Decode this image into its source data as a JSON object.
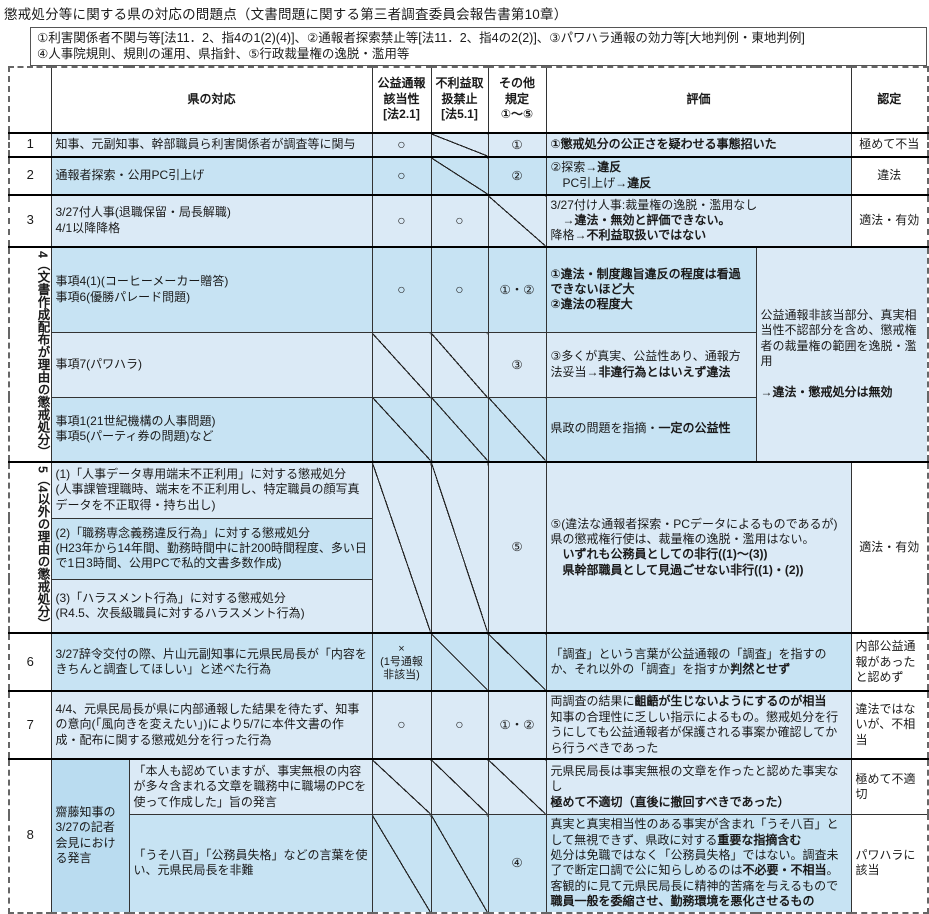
{
  "title": "懲戒処分等に関する県の対応の問題点（文書問題に関する第三者調査委員会報告書第10章）",
  "legend": {
    "line1": "①利害関係者不関与等[法11．2、指4の1(2)(4)]、②通報者探索禁止等[法11．2、指4の2(2)]、③パワハラ通報の効力等[大地判例・東地判例]",
    "line2": "④人事院規則、規則の運用、県指針、⑤行政裁量権の逸脱・濫用等"
  },
  "header": {
    "response": "県の対応",
    "col_whistleblower": "公益通報\n該当性\n[法2.1]",
    "col_disadvantage": "不利益取\n扱禁止\n[法5.1]",
    "col_other": "その他\n規定\n①～⑤",
    "evaluation": "評価",
    "determination": "認定"
  },
  "colors": {
    "band_light": "#dbeaf6",
    "band_medium": "#c7e3f3",
    "band_dark": "#badcf0"
  },
  "rows": {
    "r1": {
      "no": "1",
      "response": "知事、元副知事、幹部職員ら利害関係者が調査等に関与",
      "col_a": "○",
      "col_c": "①",
      "eval": [
        {
          "t": "①懲戒処分の公正さを疑わせる事態招いた",
          "b": true
        }
      ],
      "determination": "極めて不当"
    },
    "r2": {
      "no": "2",
      "response": "通報者探索・公用PC引上げ",
      "col_a": "○",
      "col_c": "②",
      "eval": [
        {
          "t": "②探索→",
          "b": false
        },
        {
          "t": "違反",
          "b": true
        },
        {
          "t": "\n　PC引上げ→",
          "b": false
        },
        {
          "t": "違反",
          "b": true
        }
      ],
      "determination": "違法"
    },
    "r3": {
      "no": "3",
      "response": "3/27付人事(退職保留・局長解職)\n4/1以降降格",
      "col_a": "○",
      "col_b": "○",
      "eval": [
        {
          "t": "3/27付け人事:裁量権の逸脱・濫用なし\n",
          "b": false
        },
        {
          "t": "　→違法・無効と評価できない。\n",
          "b": true
        },
        {
          "t": "降格→",
          "b": false
        },
        {
          "t": "不利益取扱いではない",
          "b": true
        }
      ],
      "determination": "適法・有効"
    },
    "r4": {
      "label": "4（文書作成配布が理由の懲戒処分）",
      "sub1": {
        "response": "事項4(1)(コーヒーメーカー贈答)\n事項6(優勝パレード問題)",
        "col_a": "○",
        "col_b": "○",
        "col_c": "①・②",
        "eval": [
          {
            "t": "①違法・制度趣旨違反の程度は看過できないほど大\n",
            "b": true
          },
          {
            "t": "②違法の程度大",
            "b": true
          }
        ]
      },
      "sub2": {
        "response": "事項7(パワハラ)",
        "col_c": "③",
        "eval": [
          {
            "t": "③多くが真実、公益性あり、通報方法妥当→",
            "b": false
          },
          {
            "t": "非違行為とはいえず違法",
            "b": true
          }
        ]
      },
      "sub3": {
        "response": "事項1(21世紀機構の人事問題)\n事項5(パーティ券の問題)など",
        "eval": [
          {
            "t": "県政の問題を指摘・",
            "b": false
          },
          {
            "t": "一定の公益性",
            "b": true
          }
        ]
      },
      "merged_eval": [
        {
          "t": "公益通報非該当部分、真実相当性不認部分を含め、懲戒権者の裁量権の範囲を逸脱・濫用\n\n",
          "b": false
        },
        {
          "t": "→違法・懲戒処分は無効",
          "b": true
        }
      ]
    },
    "r5": {
      "label": "5（4以外の理由の懲戒処分）",
      "sub1": {
        "response": "(1)「人事データ専用端末不正利用」に対する懲戒処分\n(人事課管理職時、端末を不正利用し、特定職員の顔写真データを不正取得・持ち出し)"
      },
      "sub2": {
        "response": "(2)「職務専念義務違反行為」に対する懲戒処分\n(H23年から14年間、勤務時間中に計200時間程度、多い日で1日3時間、公用PCで私的文書多数作成)"
      },
      "sub3": {
        "response": "(3)「ハラスメント行為」に対する懲戒処分\n(R4.5、次長級職員に対するハラスメント行為)"
      },
      "col_c": "⑤",
      "eval": [
        {
          "t": "⑤(違法な通報者探索・PCデータによるものであるが)\n県の懲戒権行使は、裁量権の逸脱・濫用はない。\n",
          "b": false
        },
        {
          "t": "　いずれも公務員としての非行((1)～(3))\n　県幹部職員として見過ごせない非行((1)・(2))",
          "b": true
        }
      ],
      "determination": "適法・有効"
    },
    "r6": {
      "no": "6",
      "response": "3/27辞令交付の際、片山元副知事に元県民局長が「内容をきちんと調査してほしい」と述べた行為",
      "col_a": "×\n(1号通報\n非該当)",
      "eval": [
        {
          "t": "「調査」という言葉が公益通報の「調査」を指すのか、それ以外の「調査」を指すか",
          "b": false
        },
        {
          "t": "判然とせず",
          "b": true
        }
      ],
      "determination": "内部公益通報があったと認めず"
    },
    "r7": {
      "no": "7",
      "response": "4/4、元県民局長が県に内部通報した結果を待たず、知事の意向(「風向きを変えたい」)により5/7に本件文書の作成・配布に関する懲戒処分を行った行為",
      "col_a": "○",
      "col_b": "○",
      "col_c": "①・②",
      "eval": [
        {
          "t": "両調査の結果に",
          "b": false
        },
        {
          "t": "齟齬が生じないようにするのが相当",
          "b": true
        },
        {
          "t": "\n知事の合理性に乏しい指示によるもの。懲戒処分を行うにしても公益通報者が保護される事案か確認してから行うべきであった",
          "b": false
        }
      ],
      "determination": "違法ではないが、不相当"
    },
    "r8": {
      "no": "8",
      "group": "齋藤知事の3/27の記者会見における発言",
      "sub1": {
        "response": "「本人も認めていますが、事実無根の内容が多々含まれる文章を職務中に職場のPCを使って作成した」旨の発言",
        "eval": [
          {
            "t": "元県民局長は事実無根の文章を作ったと認めた事実なし\n",
            "b": false
          },
          {
            "t": "極めて不適切（直後に撤回すべきであった）",
            "b": true
          }
        ],
        "determination": "極めて不適切"
      },
      "sub2": {
        "response": "「うそ八百」「公務員失格」などの言葉を使い、元県民局長を非難",
        "col_c": "④",
        "eval": [
          {
            "t": "真実と真実相当性のある事実が含まれ「うそ八百」として無視できず、県政に対する",
            "b": false
          },
          {
            "t": "重要な指摘含む",
            "b": true
          },
          {
            "t": "\n処分は免職ではなく「公務員失格」ではない。調査未了で断定口調で公に知らしめるのは",
            "b": false
          },
          {
            "t": "不必要・不相当",
            "b": true
          },
          {
            "t": "。\n客観的に見て元県民局長に精神的苦痛を与えるもので",
            "b": false
          },
          {
            "t": "職員一般を委縮させ、勤務環境を悪化させるもの",
            "b": true
          }
        ],
        "determination": "パワハラに該当"
      }
    }
  }
}
